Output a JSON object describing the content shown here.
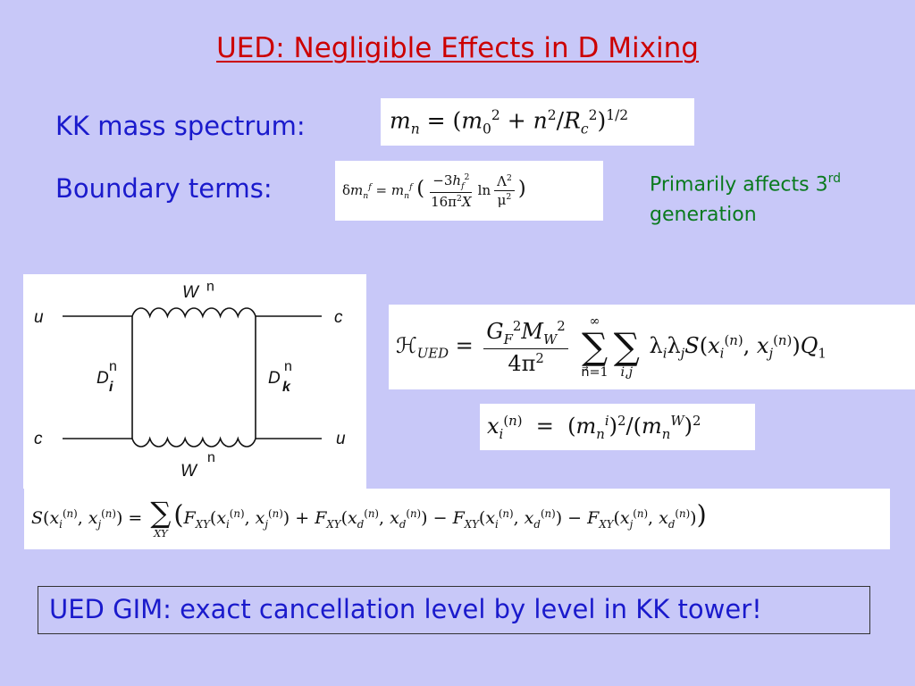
{
  "slide": {
    "title": "UED:  Negligible Effects in D Mixing",
    "kk_label": "KK mass spectrum:",
    "boundary_label": "Boundary terms:",
    "note_line1": "Primarily affects 3",
    "note_sup": "rd",
    "note_line2": "generation",
    "gim_text": "UED GIM:  exact cancellation level by level in KK tower!"
  },
  "diagram": {
    "top_boson": "W",
    "top_boson_sup": "n",
    "bottom_boson": "W",
    "bottom_boson_sup": "n",
    "top_left": "u",
    "top_right": "c",
    "bottom_left": "c",
    "bottom_right": "u",
    "left_prop": "D",
    "left_prop_sub": "i",
    "left_prop_sup": "n",
    "right_prop": "D",
    "right_prop_sub": "k",
    "right_prop_sup": "n"
  },
  "colors": {
    "background": "#c8c8f8",
    "title": "#cc0000",
    "label_blue": "#1a1acc",
    "note_green": "#0a7a1e"
  }
}
